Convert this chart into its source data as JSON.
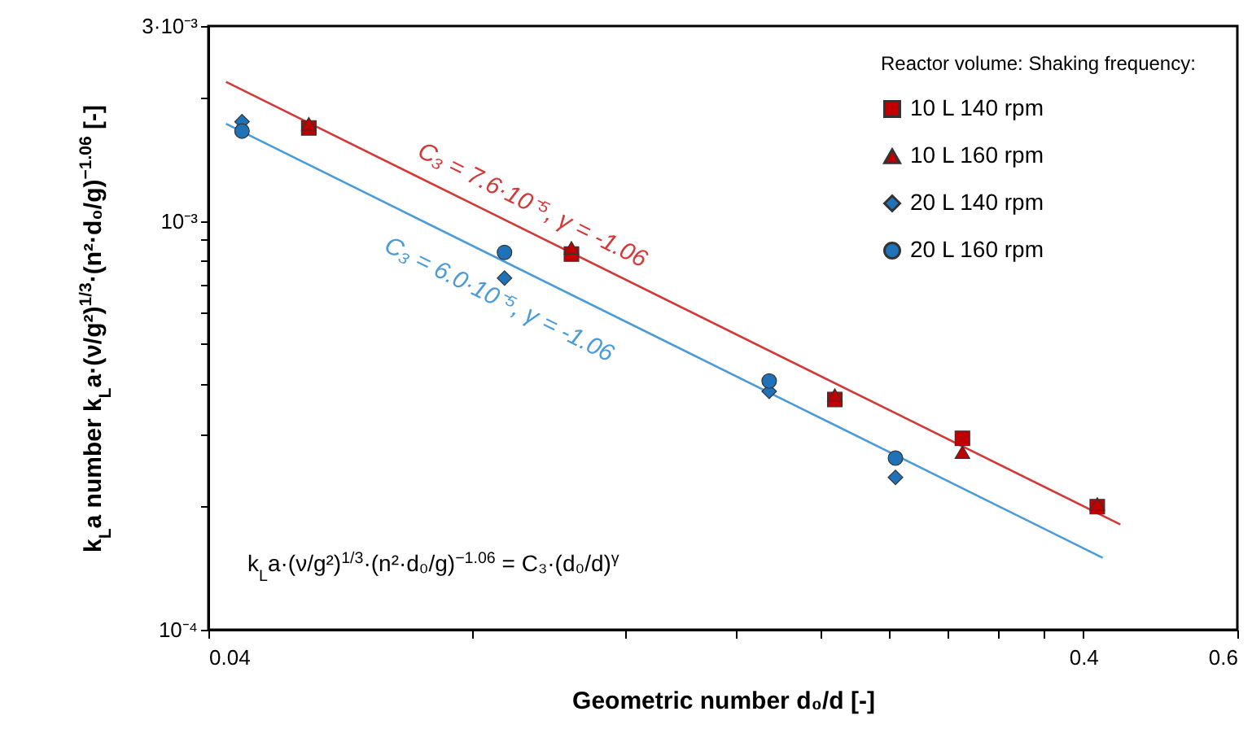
{
  "chart_data": {
    "type": "scatter",
    "xlabel": "Geometric number d₀/d [-]",
    "ylabel": "k$_{L}$a number  k$_{L}$a·(ν/g²)$^{1/3}$·(n²·d₀/g)$^{−1.06}$ [-]",
    "legend_title": "Reactor volume:   Shaking frequency:",
    "log": "xy",
    "grid": false,
    "legend": "top right",
    "xlim": [
      0.04,
      0.6
    ],
    "xticks": [
      0.04,
      {
        "value": 0.08,
        "label": null
      },
      {
        "value": 0.12,
        "label": null
      },
      {
        "value": 0.16,
        "label": null
      },
      {
        "value": 0.2,
        "label": null
      },
      {
        "value": 0.24,
        "label": null
      },
      {
        "value": 0.28,
        "label": null
      },
      {
        "value": 0.32,
        "label": null
      },
      {
        "value": 0.36,
        "label": null
      },
      0.4,
      0.6
    ],
    "ylim": [
      0.0001,
      0.003
    ],
    "yticks": [
      {
        "value": 0.0001,
        "label": "10⁻⁴"
      },
      {
        "value": 0.0002,
        "label": null
      },
      {
        "value": 0.0003,
        "label": null
      },
      {
        "value": 0.0004,
        "label": null
      },
      {
        "value": 0.0005,
        "label": null
      },
      {
        "value": 0.0006,
        "label": null
      },
      {
        "value": 0.0007,
        "label": null
      },
      {
        "value": 0.0008,
        "label": null
      },
      {
        "value": 0.0009,
        "label": null
      },
      {
        "value": 0.001,
        "label": "10⁻³"
      },
      {
        "value": 0.002,
        "label": null
      },
      {
        "value": 0.003,
        "label": "3·10⁻³"
      }
    ],
    "series": [
      {
        "name": "10 L   140 rpm",
        "marker": "square",
        "color": "#c00000",
        "x": [
          0.0521,
          0.104,
          0.208,
          0.291,
          0.415
        ],
        "values": [
          0.00169,
          0.00083,
          0.000366,
          0.000294,
          0.0002
        ]
      },
      {
        "name": "10 L   160 rpm",
        "marker": "triangle",
        "color": "#c00000",
        "x": [
          0.0521,
          0.104,
          0.208,
          0.291,
          0.415
        ],
        "values": [
          0.00173,
          0.00086,
          0.000375,
          0.000272,
          0.000203
        ]
      },
      {
        "name": "20 L   140 rpm",
        "marker": "diamond",
        "color": "#1f72b8",
        "x": [
          0.0437,
          0.0872,
          0.175,
          0.244
        ],
        "values": [
          0.00175,
          0.000725,
          0.000383,
          0.000236
        ]
      },
      {
        "name": "20 L   160 rpm",
        "marker": "circle",
        "color": "#1f72b8",
        "x": [
          0.0437,
          0.0872,
          0.175,
          0.244
        ],
        "values": [
          0.00166,
          0.000838,
          0.000406,
          0.000263
        ]
      },
      {
        "type": "line",
        "color": "#d23a3a",
        "line_style": "solid",
        "x": [
          0.0419,
          0.441
        ],
        "values": [
          0.00219,
          0.000181
        ]
      },
      {
        "type": "line",
        "color": "#4a9bd6",
        "line_style": "solid",
        "x": [
          0.0419,
          0.421
        ],
        "values": [
          0.00173,
          0.00015
        ]
      }
    ],
    "annotations": [
      "C₃ = 7.6·10⁻⁵, γ = -1.06",
      "C₃ = 6.0·10⁻⁵, γ = -1.06",
      "k$_{L}$a·(ν/g²)$^{1/3}$·(n²·d₀/g)$^{−1.06}$ = C₃·(d₀/d)$^{γ}$"
    ]
  }
}
